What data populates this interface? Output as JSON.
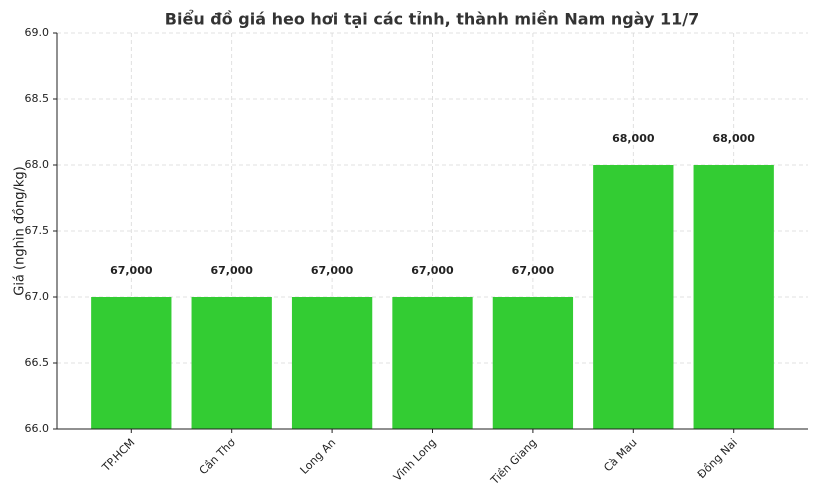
{
  "chart_data": {
    "type": "bar",
    "title": "Biểu đồ giá heo hơi tại các tỉnh, thành miền Nam ngày 11/7",
    "y_label": "Giá (nghìn đồng/kg)",
    "categories": [
      "TP.HCM",
      "Cần Thơ",
      "Long An",
      "Vĩnh Long",
      "Tiền Giang",
      "Cà Mau",
      "Đồng Nai"
    ],
    "values": [
      67,
      67,
      67,
      67,
      67,
      68,
      68
    ],
    "value_labels": [
      "67,000",
      "67,000",
      "67,000",
      "67,000",
      "67,000",
      "68,000",
      "68,000"
    ],
    "color": "#33cc33",
    "ylim": [
      66,
      69
    ],
    "yticks": [
      {
        "value": 66,
        "label": "66.0"
      },
      {
        "value": 66.5,
        "label": "66.5"
      },
      {
        "value": 67,
        "label": "67.0"
      },
      {
        "value": 67.5,
        "label": "67.5"
      },
      {
        "value": 68,
        "label": "68.0"
      },
      {
        "value": 68.5,
        "label": "68.5"
      },
      {
        "value": 69,
        "label": "69.0"
      }
    ],
    "grid": true
  }
}
